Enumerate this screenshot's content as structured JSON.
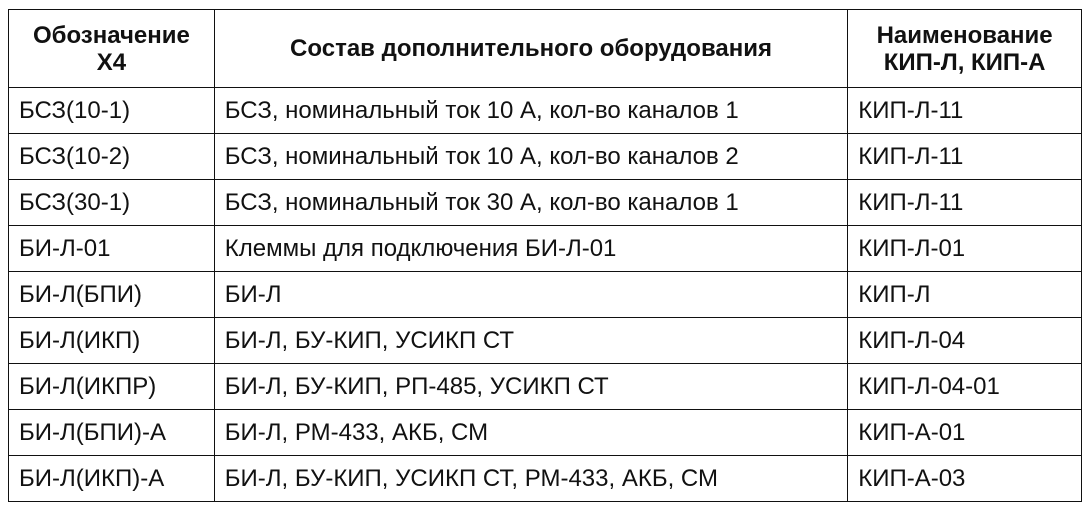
{
  "table": {
    "headers": [
      [
        "Обозначение",
        "Х4"
      ],
      [
        "Состав дополнительного оборудования"
      ],
      [
        "Наименование",
        "КИП-Л, КИП-А"
      ]
    ],
    "rows": [
      [
        "БСЗ(10-1)",
        "БСЗ, номинальный ток 10 А, кол-во каналов 1",
        "КИП-Л-11"
      ],
      [
        "БСЗ(10-2)",
        "БСЗ, номинальный ток 10 А, кол-во каналов 2",
        "КИП-Л-11"
      ],
      [
        "БСЗ(30-1)",
        "БСЗ, номинальный ток 30 А, кол-во каналов 1",
        "КИП-Л-11"
      ],
      [
        "БИ-Л-01",
        "Клеммы для подключения БИ-Л-01",
        "КИП-Л-01"
      ],
      [
        "БИ-Л(БПИ)",
        "БИ-Л",
        "КИП-Л"
      ],
      [
        "БИ-Л(ИКП)",
        "БИ-Л, БУ-КИП, УСИКП СТ",
        "КИП-Л-04"
      ],
      [
        "БИ-Л(ИКПР)",
        "БИ-Л, БУ-КИП, РП-485, УСИКП СТ",
        "КИП-Л-04-01"
      ],
      [
        "БИ-Л(БПИ)-А",
        "БИ-Л, РМ-433, АКБ, СМ",
        "КИП-А-01"
      ],
      [
        "БИ-Л(ИКП)-А",
        "БИ-Л, БУ-КИП, УСИКП СТ, РМ-433, АКБ, СМ",
        "КИП-А-03"
      ]
    ]
  }
}
